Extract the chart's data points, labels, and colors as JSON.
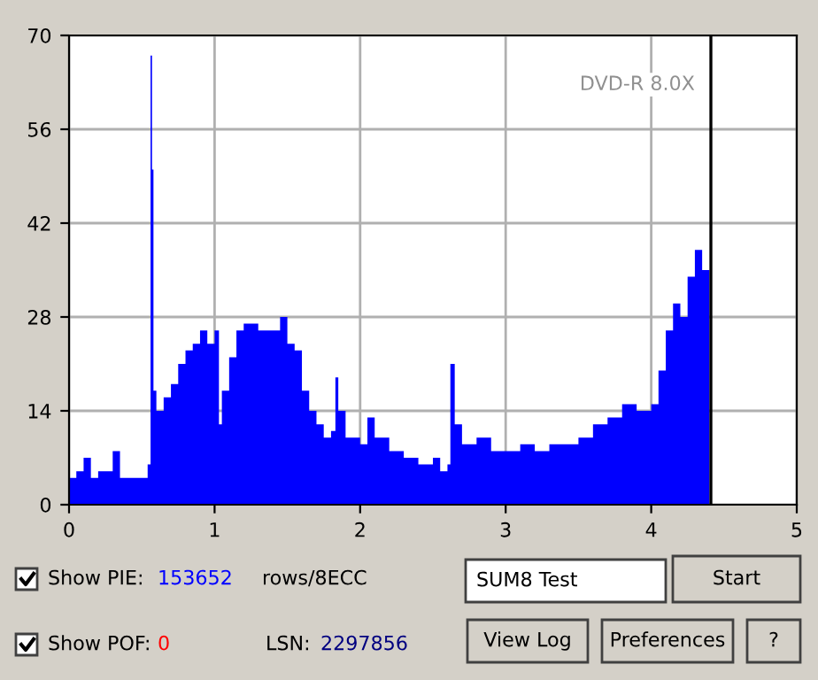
{
  "chart_data": {
    "type": "area",
    "color": "#0000ff",
    "x": [
      0,
      0.05,
      0.1,
      0.15,
      0.2,
      0.25,
      0.3,
      0.35,
      0.4,
      0.45,
      0.5,
      0.54,
      0.56,
      0.57,
      0.58,
      0.6,
      0.65,
      0.7,
      0.75,
      0.8,
      0.85,
      0.9,
      0.95,
      1.0,
      1.03,
      1.05,
      1.1,
      1.15,
      1.2,
      1.3,
      1.4,
      1.45,
      1.5,
      1.55,
      1.6,
      1.65,
      1.7,
      1.75,
      1.8,
      1.83,
      1.85,
      1.9,
      2.0,
      2.05,
      2.1,
      2.2,
      2.3,
      2.4,
      2.5,
      2.55,
      2.6,
      2.62,
      2.65,
      2.7,
      2.8,
      2.9,
      3.0,
      3.1,
      3.2,
      3.3,
      3.4,
      3.5,
      3.6,
      3.7,
      3.8,
      3.9,
      4.0,
      4.05,
      4.1,
      4.15,
      4.2,
      4.25,
      4.3,
      4.35,
      4.4
    ],
    "values": [
      4,
      5,
      7,
      4,
      5,
      5,
      8,
      4,
      4,
      4,
      4,
      6,
      67,
      50,
      17,
      14,
      16,
      18,
      21,
      23,
      24,
      26,
      24,
      26,
      12,
      17,
      22,
      26,
      27,
      26,
      26,
      28,
      24,
      23,
      17,
      14,
      12,
      10,
      11,
      19,
      14,
      10,
      9,
      13,
      10,
      8,
      7,
      6,
      7,
      5,
      6,
      21,
      12,
      9,
      10,
      8,
      8,
      9,
      8,
      9,
      9,
      10,
      12,
      13,
      15,
      14,
      15,
      20,
      26,
      30,
      28,
      34,
      38,
      35,
      33
    ],
    "xlim": [
      0,
      5
    ],
    "xticks": [
      0,
      1,
      2,
      3,
      4,
      5
    ],
    "ylim": [
      0,
      70
    ],
    "yticks": [
      0,
      14,
      28,
      42,
      56,
      70
    ],
    "grid": true,
    "ref_lines": [
      {
        "axis": "x",
        "value": 4.41,
        "color": "#000000"
      }
    ],
    "annotations": [
      "DVD-R 8.0X",
      "Show PIE:",
      "153652",
      "rows/8ECC",
      "SUM8 Test",
      "Start",
      "Show POF:",
      "0",
      "LSN:",
      "2297856",
      "View Log",
      "Preferences",
      "?"
    ]
  }
}
